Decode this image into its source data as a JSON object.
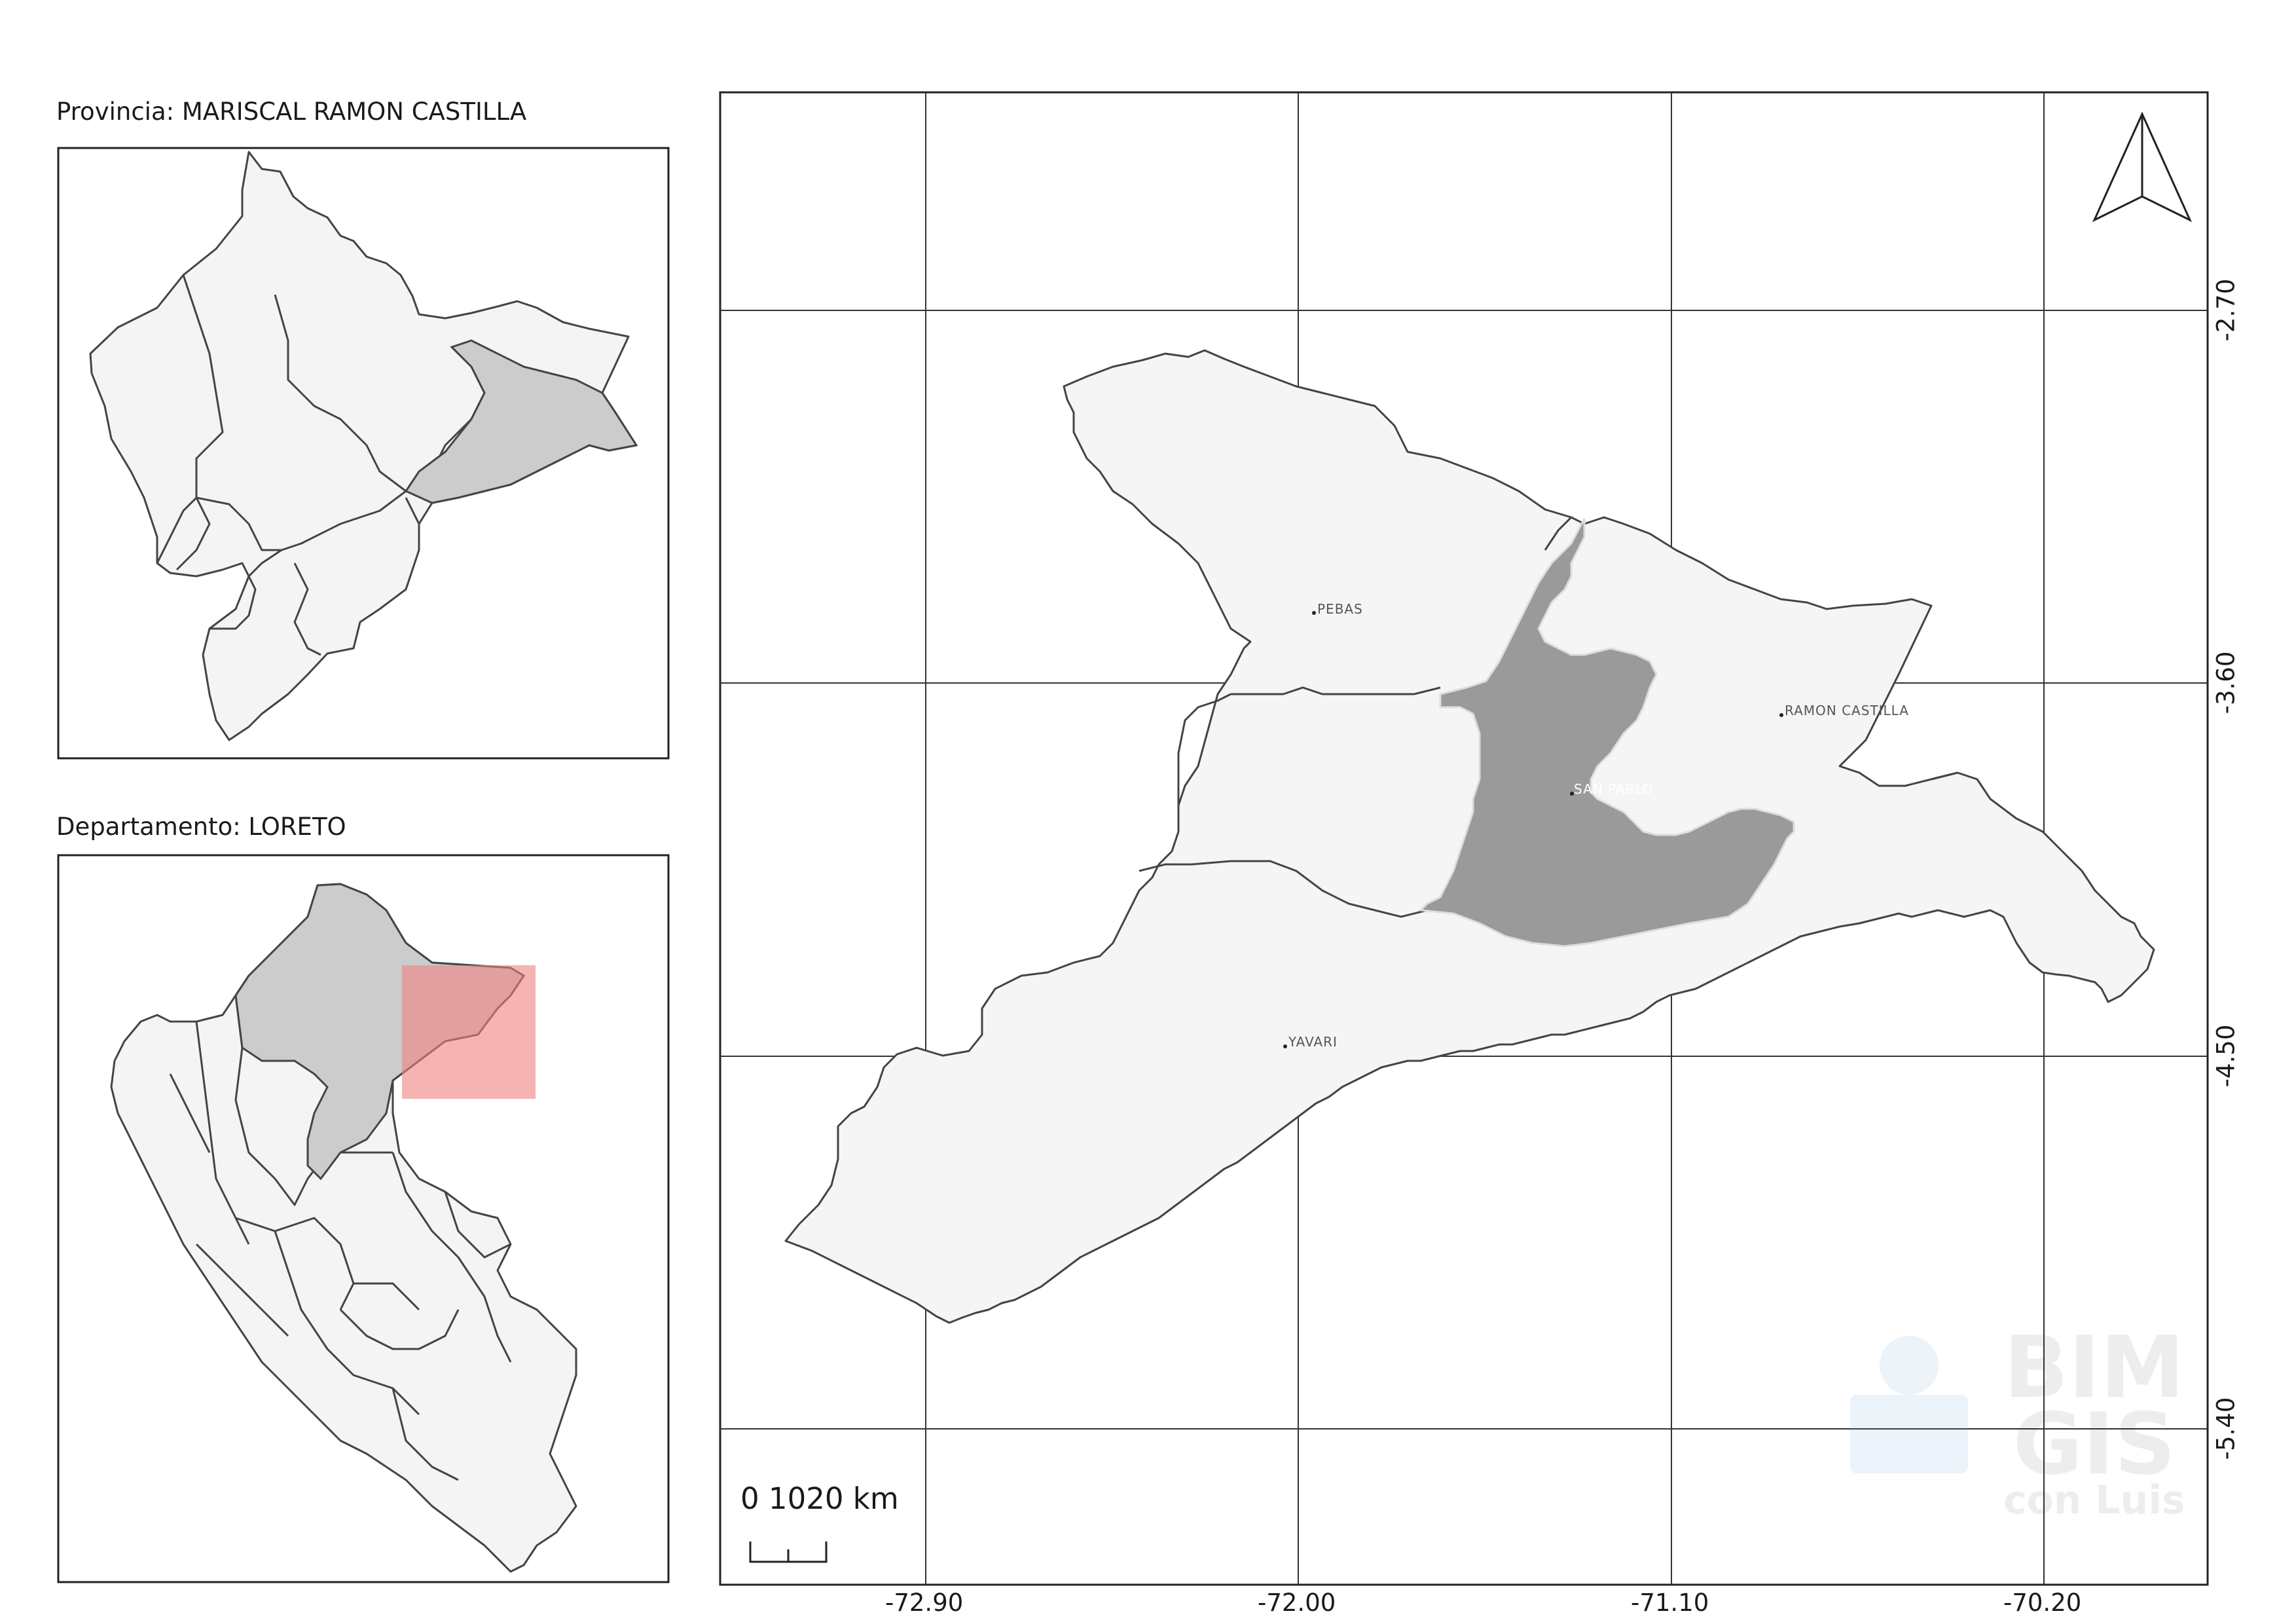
{
  "map": {
    "province_title": "Provincia: MARISCAL RAMON CASTILLA",
    "department_title": "Departamento: LORETO",
    "scale_label": "0 1020 km",
    "grid": {
      "x_labels": [
        "-72.90",
        "-72.00",
        "-71.10",
        "-70.20"
      ],
      "y_labels": [
        "-2.70",
        "-3.60",
        "-4.50",
        "-5.40"
      ]
    },
    "places": [
      {
        "name": "PEBAS"
      },
      {
        "name": "RAMON CASTILLA"
      },
      {
        "name": "SAN PABLO"
      },
      {
        "name": "YAVARI"
      }
    ],
    "watermark": {
      "line1": "BIM",
      "line2": "GIS",
      "line3": "con Luis"
    },
    "colors": {
      "highlight_district": "#9a9a9a",
      "region_fill": "#f4f4f4",
      "inset_highlight": "#cccccc",
      "extent_box": "#f08080",
      "border": "#333333"
    }
  }
}
